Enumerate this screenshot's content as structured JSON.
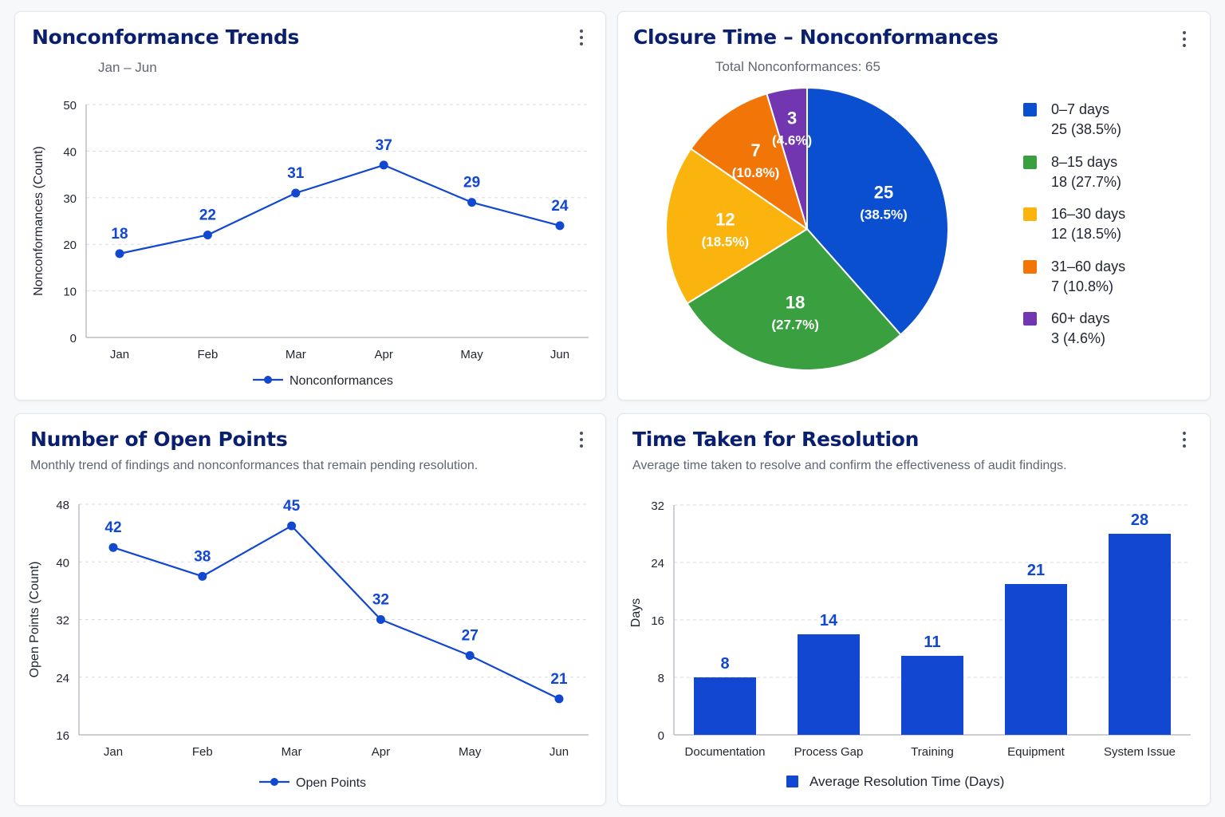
{
  "colors": {
    "primary": "#1247d1",
    "title": "#0a1f6e",
    "grid": "#d7dbe2",
    "axis": "#9aa1ab",
    "text": "#1f2430",
    "muted": "#5f6672"
  },
  "cards": {
    "trends": {
      "title": "Nonconformance Trends",
      "subtitle": "Jan – Jun",
      "menu_icon": "kebab-menu-icon"
    },
    "closure": {
      "title": "Closure Time – Nonconformances",
      "subtitle": "Total Nonconformances: 65",
      "menu_icon": "kebab-menu-icon"
    },
    "open": {
      "title": "Number of Open Points",
      "subtitle": "Monthly trend of findings and nonconformances that remain pending resolution.",
      "menu_icon": "kebab-menu-icon"
    },
    "resolution": {
      "title": "Time Taken for Resolution",
      "subtitle": "Average time taken to resolve and confirm the effectiveness of audit findings.",
      "menu_icon": "kebab-menu-icon"
    }
  },
  "chart_data": [
    {
      "id": "trends",
      "type": "line",
      "title": "Nonconformance Trends",
      "subtitle": "Jan – Jun",
      "ylabel": "Nonconformances (Count)",
      "xlabel": "",
      "categories": [
        "Jan",
        "Feb",
        "Mar",
        "Apr",
        "May",
        "Jun"
      ],
      "series": [
        {
          "name": "Nonconformances",
          "values": [
            18,
            22,
            31,
            37,
            29,
            24
          ]
        }
      ],
      "ylim": [
        0,
        50
      ],
      "yticks": [
        0,
        10,
        20,
        30,
        40,
        50
      ],
      "grid": true,
      "data_labels": true,
      "legend": "bottom"
    },
    {
      "id": "closure",
      "type": "pie",
      "title": "Closure Time – Nonconformances",
      "subtitle": "Total Nonconformances: 65",
      "slices": [
        {
          "label": "0–7 days",
          "value": 25,
          "percent": "38.5%",
          "color": "#0a4fcf"
        },
        {
          "label": "8–15 days",
          "value": 18,
          "percent": "27.7%",
          "color": "#3a9f3f"
        },
        {
          "label": "16–30 days",
          "value": 12,
          "percent": "18.5%",
          "color": "#fbb40d"
        },
        {
          "label": "31–60 days",
          "value": 7,
          "percent": "10.8%",
          "color": "#f27607"
        },
        {
          "label": "60+ days",
          "value": 3,
          "percent": "4.6%",
          "color": "#7236b1"
        }
      ],
      "legend": "right",
      "data_labels": true
    },
    {
      "id": "open",
      "type": "line",
      "title": "Number of Open Points",
      "ylabel": "Open Points (Count)",
      "xlabel": "",
      "categories": [
        "Jan",
        "Feb",
        "Mar",
        "Apr",
        "May",
        "Jun"
      ],
      "series": [
        {
          "name": "Open Points",
          "values": [
            42,
            38,
            45,
            32,
            27,
            21
          ]
        }
      ],
      "ylim": [
        16,
        48
      ],
      "yticks": [
        16,
        24,
        32,
        40,
        48
      ],
      "grid": true,
      "data_labels": true,
      "legend": "bottom"
    },
    {
      "id": "resolution",
      "type": "bar",
      "title": "Time Taken for Resolution",
      "ylabel": "Days",
      "xlabel": "",
      "categories": [
        "Documentation",
        "Process Gap",
        "Training",
        "Equipment",
        "System Issue"
      ],
      "series": [
        {
          "name": "Average Resolution Time (Days)",
          "values": [
            8,
            14,
            11,
            21,
            28
          ]
        }
      ],
      "ylim": [
        0,
        32
      ],
      "yticks": [
        0,
        8,
        16,
        24,
        32
      ],
      "grid": true,
      "data_labels": true,
      "legend": "bottom"
    }
  ]
}
